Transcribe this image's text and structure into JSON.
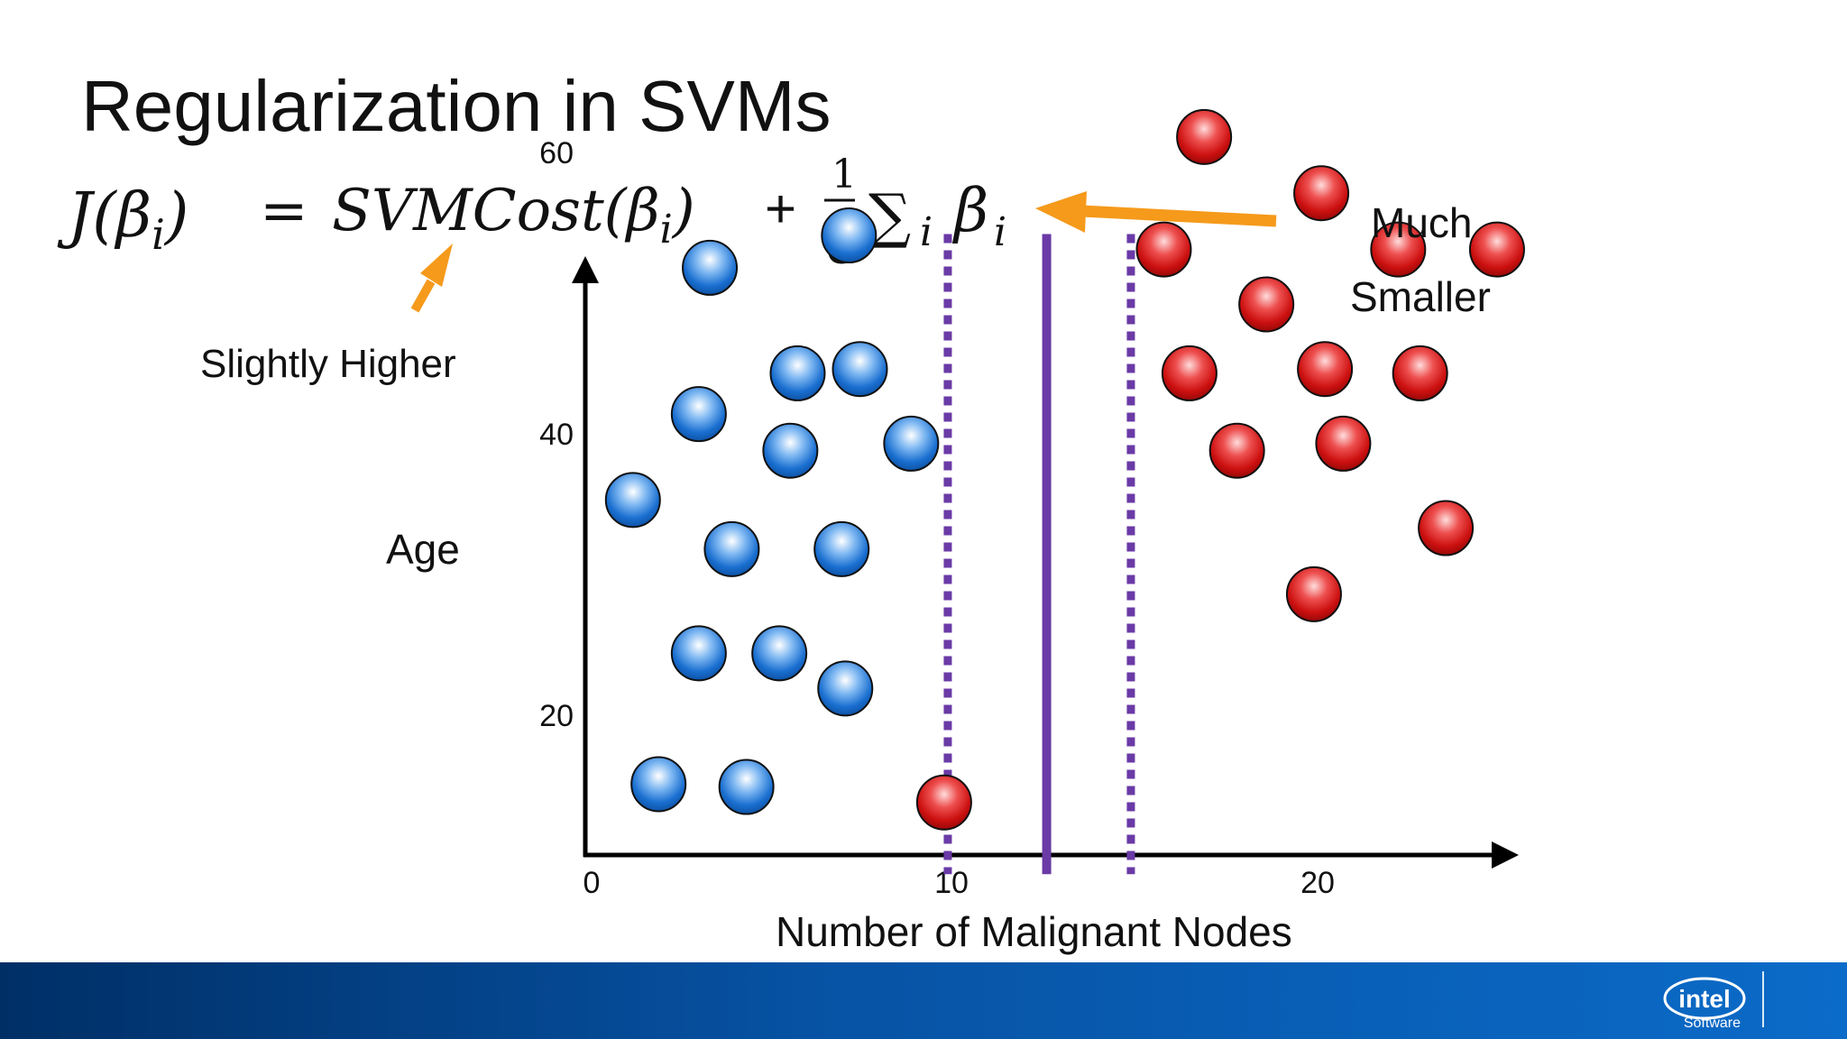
{
  "slide": {
    "title": "Regularization in SVMs",
    "equation": {
      "lhs": "J(β",
      "lhs_sub": "i",
      "lhs_close": ")",
      "equals": "=",
      "cost": "SVMCost(β",
      "cost_sub": "i",
      "cost_close": ")",
      "plus": "+",
      "frac_num": "1",
      "frac_den": "C",
      "sum": "∑",
      "sum_sub": "i",
      "beta": "β",
      "beta_sub": "i"
    },
    "annotations": {
      "slightly_higher": "Slightly Higher",
      "much": "Much",
      "smaller": "Smaller"
    },
    "colors": {
      "blue_point": "#1a6fd0",
      "red_point": "#cc1010",
      "margin_line": "#6a3aa6",
      "arrow": "#f59a1b"
    },
    "footer": {
      "brand": "intel",
      "software": "Software"
    }
  },
  "chart_data": {
    "type": "scatter",
    "xlabel": "Number of Malignant Nodes",
    "ylabel": "Age",
    "xlim": [
      0,
      25
    ],
    "ylim": [
      6,
      60
    ],
    "x_ticks": [
      0,
      10,
      20
    ],
    "y_ticks": [
      20,
      40,
      60
    ],
    "grid": false,
    "series": [
      {
        "color": "blue",
        "points": [
          [
            3.4,
            51.8
          ],
          [
            7.2,
            54.1
          ],
          [
            5.8,
            44.3
          ],
          [
            7.5,
            44.6
          ],
          [
            3.1,
            41.4
          ],
          [
            8.9,
            39.3
          ],
          [
            5.6,
            38.8
          ],
          [
            1.3,
            35.3
          ],
          [
            4.0,
            31.8
          ],
          [
            7.0,
            31.8
          ],
          [
            3.1,
            24.4
          ],
          [
            5.3,
            24.4
          ],
          [
            7.1,
            21.9
          ],
          [
            2.0,
            15.1
          ],
          [
            4.4,
            14.9
          ]
        ]
      },
      {
        "color": "red",
        "points": [
          [
            16.9,
            61.1
          ],
          [
            20.1,
            57.1
          ],
          [
            15.8,
            53.1
          ],
          [
            22.2,
            53.1
          ],
          [
            24.9,
            53.1
          ],
          [
            18.6,
            49.2
          ],
          [
            16.5,
            44.3
          ],
          [
            20.2,
            44.6
          ],
          [
            22.8,
            44.3
          ],
          [
            17.8,
            38.8
          ],
          [
            20.7,
            39.3
          ],
          [
            23.5,
            33.3
          ],
          [
            19.9,
            28.6
          ],
          [
            9.8,
            13.8
          ]
        ]
      }
    ],
    "decision_boundary": {
      "x": 12.6,
      "y_range": [
        8.7,
        54.2
      ]
    },
    "margins": [
      {
        "x": 9.9,
        "y_range": [
          8.7,
          54.2
        ]
      },
      {
        "x": 14.9,
        "y_range": [
          8.7,
          54.2
        ]
      }
    ]
  }
}
